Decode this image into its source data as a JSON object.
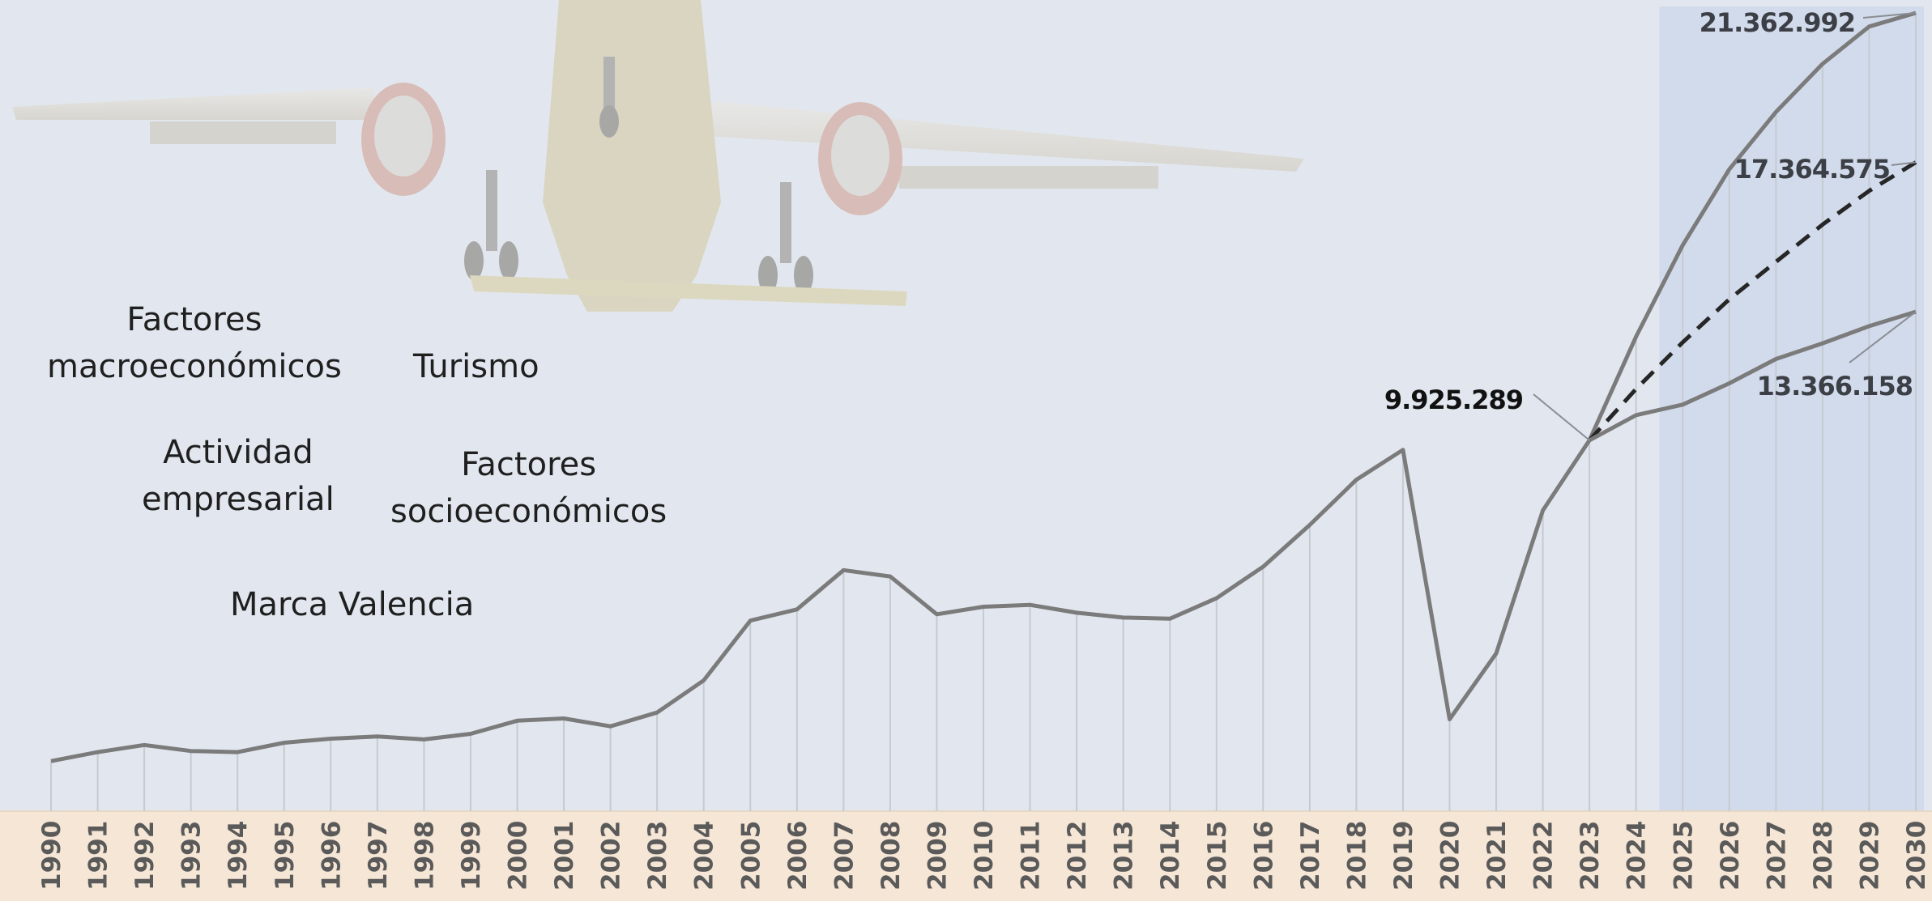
{
  "factors": [
    {
      "id": "macro",
      "lines": [
        "Factores",
        "macroeconómicos"
      ]
    },
    {
      "id": "turismo",
      "lines": [
        "Turismo"
      ]
    },
    {
      "id": "actividad",
      "lines": [
        "Actividad",
        "empresarial"
      ]
    },
    {
      "id": "socio",
      "lines": [
        "Factores",
        "socioeconómicos"
      ]
    },
    {
      "id": "marca",
      "lines": [
        "Marca Valencia"
      ]
    }
  ],
  "chart_data": {
    "type": "line",
    "title": "",
    "xlabel": "",
    "ylabel": "",
    "ylim": [
      0,
      21362992
    ],
    "grid": "vertical lines at each year",
    "forecast_shading": {
      "from": 2024.5,
      "to": 2030
    },
    "x_ticks": [
      "1990",
      "1991",
      "1992",
      "1993",
      "1994",
      "1995",
      "1996",
      "1997",
      "1998",
      "1999",
      "2000",
      "2001",
      "2002",
      "2003",
      "2004",
      "2005",
      "2006",
      "2007",
      "2008",
      "2009",
      "2010",
      "2011",
      "2012",
      "2013",
      "2014",
      "2015",
      "2016",
      "2017",
      "2018",
      "2019",
      "2020",
      "2021",
      "2022",
      "2023",
      "2024",
      "2025",
      "2026",
      "2027",
      "2028",
      "2029",
      "2030"
    ],
    "historical": {
      "x": [
        1990,
        1991,
        1992,
        1993,
        1994,
        1995,
        1996,
        1997,
        1998,
        1999,
        2000,
        2001,
        2002,
        2003,
        2004,
        2005,
        2006,
        2007,
        2008,
        2009,
        2010,
        2011,
        2012,
        2013,
        2014,
        2015,
        2016,
        2017,
        2018,
        2019,
        2020,
        2021,
        2022,
        2023
      ],
      "y": [
        1340000,
        1580000,
        1770000,
        1610000,
        1580000,
        1830000,
        1940000,
        2000000,
        1920000,
        2070000,
        2420000,
        2480000,
        2270000,
        2640000,
        3500000,
        5100000,
        5400000,
        6450000,
        6280000,
        5270000,
        5470000,
        5520000,
        5310000,
        5180000,
        5150000,
        5700000,
        6540000,
        7660000,
        8870000,
        9670000,
        2460000,
        4220000,
        8050000,
        9925289
      ]
    },
    "scenarios": [
      {
        "style": "solid",
        "x": [
          2023,
          2024,
          2025,
          2026,
          2027,
          2028,
          2029,
          2030
        ],
        "y": [
          9925289,
          12700000,
          15150000,
          17180000,
          18710000,
          20000000,
          21000000,
          21362992
        ]
      },
      {
        "style": "dashed",
        "x": [
          2023,
          2024,
          2025,
          2026,
          2027,
          2028,
          2029,
          2030
        ],
        "y": [
          9925289,
          11300000,
          12550000,
          13700000,
          14700000,
          15700000,
          16600000,
          17364575
        ]
      },
      {
        "style": "solid",
        "x": [
          2023,
          2024,
          2025,
          2026,
          2027,
          2028,
          2029,
          2030
        ],
        "y": [
          9925289,
          10600000,
          10880000,
          11450000,
          12100000,
          12520000,
          12980000,
          13366158
        ]
      }
    ],
    "labels": [
      {
        "text": "9.925.289",
        "x": 2023,
        "y": 9925289
      },
      {
        "text": "21.362.992",
        "x": 2030,
        "y": 21362992
      },
      {
        "text": "17.364.575",
        "x": 2030,
        "y": 17364575
      },
      {
        "text": "13.366.158",
        "x": 2030,
        "y": 13366158
      }
    ]
  },
  "colors": {
    "background": "#e2e7ef",
    "forecast_band": "#d2dbeb",
    "axis_band": "#f6e6d6",
    "line": "#7b7b7b",
    "dashed_line": "#262626",
    "gridline": "#c6cad1",
    "label_main": "#111111",
    "label_scenario": "#3c3f45"
  }
}
